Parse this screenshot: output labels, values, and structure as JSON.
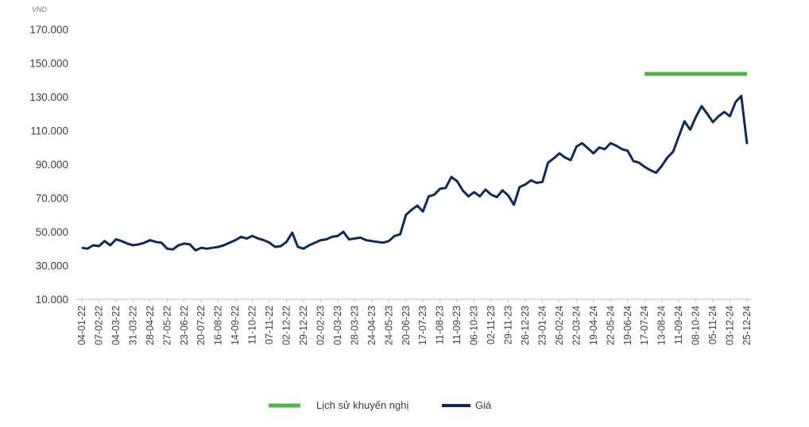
{
  "chart_data": {
    "type": "line",
    "unit_label": "VND",
    "y_ticks": [
      "170.000",
      "150.000",
      "130.000",
      "110.000",
      "90.000",
      "70.000",
      "50.000",
      "30.000",
      "10.000"
    ],
    "ylim": [
      10000,
      170000
    ],
    "x_ticks": [
      "04-01-22",
      "07-02-22",
      "04-03-22",
      "31-03-22",
      "28-04-22",
      "27-05-22",
      "23-06-22",
      "20-07-22",
      "16-08-22",
      "14-09-22",
      "11-10-22",
      "07-11-22",
      "02-12-22",
      "29-12-22",
      "02-02-23",
      "01-03-23",
      "28-03-23",
      "24-04-23",
      "24-05-23",
      "20-06-23",
      "17-07-23",
      "11-08-23",
      "11-09-23",
      "06-10-23",
      "02-11-23",
      "29-11-23",
      "26-12-23",
      "23-01-24",
      "26-02-24",
      "22-03-24",
      "19-04-24",
      "22-05-24",
      "19-06-24",
      "17-07-24",
      "13-08-24",
      "11-09-24",
      "08-10-24",
      "05-11-24",
      "03-12-24",
      "25-12-24"
    ],
    "series": [
      {
        "name": "Giá",
        "color": "#0d2a5c",
        "values": [
          40500,
          40000,
          42000,
          41500,
          44500,
          42000,
          45500,
          44500,
          43000,
          42000,
          42500,
          43500,
          45000,
          44000,
          43500,
          40000,
          39500,
          42000,
          43000,
          42500,
          39000,
          40500,
          40000,
          40500,
          41000,
          42000,
          43500,
          45000,
          47000,
          46000,
          47500,
          46000,
          45000,
          43500,
          41000,
          41500,
          44000,
          49500,
          41000,
          40000,
          42000,
          43500,
          45000,
          45500,
          47000,
          47500,
          50000,
          45500,
          46000,
          46500,
          45000,
          44500,
          44000,
          43500,
          44500,
          47500,
          48500,
          60000,
          63000,
          65500,
          62000,
          71000,
          72000,
          75500,
          76000,
          82500,
          80000,
          74500,
          71000,
          73500,
          71000,
          75000,
          72000,
          70500,
          74500,
          71500,
          66000,
          76500,
          78000,
          80500,
          79000,
          79500,
          91000,
          93500,
          96500,
          94000,
          92500,
          100500,
          102500,
          99500,
          96500,
          100000,
          99000,
          102500,
          101000,
          99000,
          98000,
          92000,
          91000,
          88500,
          86500,
          85000,
          89000,
          94000,
          97500,
          106500,
          115500,
          110500,
          118000,
          124500,
          120000,
          115000,
          118500,
          121000,
          118500,
          127000,
          130500,
          102000
        ]
      },
      {
        "name": "Lịch sử khuyến nghị",
        "color": "#4cb847",
        "segment_x_ticks": [
          "17-07-24",
          "25-12-24"
        ],
        "value": 143600
      }
    ],
    "legend": [
      "Lịch sử khuyến nghị",
      "Giá"
    ],
    "legend_position": "bottom-center",
    "grid": false
  }
}
